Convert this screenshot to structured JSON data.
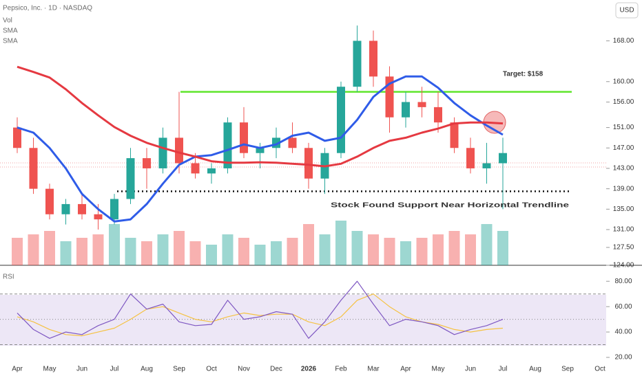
{
  "chart_data": {
    "type": "candlestick",
    "title": "Pepsico, Inc. · 1D · NASDAQ",
    "currency": "USD",
    "categories": [
      "Apr",
      null,
      "May",
      null,
      "Jun",
      null,
      "Jul",
      null,
      "Aug",
      null,
      "Sep",
      null,
      "Oct",
      null,
      "Nov",
      null,
      "Dec",
      null,
      "2026",
      null,
      "Feb",
      null,
      "Mar",
      null,
      "Apr",
      null,
      "May",
      null,
      "Jun",
      null,
      "Jul",
      null,
      "Aug",
      null,
      "Sep",
      null,
      "Oct"
    ],
    "open": [
      151,
      147,
      139,
      134,
      136,
      134,
      133,
      137,
      145,
      143,
      149,
      144,
      142,
      143,
      152,
      146,
      147,
      149,
      147,
      141,
      146,
      159,
      168,
      161,
      153,
      156,
      155,
      152,
      147,
      143,
      144,
      null,
      null,
      null,
      null,
      null,
      null
    ],
    "high": [
      153,
      149,
      140,
      137,
      138,
      136,
      138,
      147,
      147,
      151,
      158,
      146,
      144,
      153,
      155,
      148,
      151,
      152,
      148,
      147,
      160,
      171,
      170,
      163,
      158,
      159,
      158,
      153,
      149,
      148,
      149,
      null,
      null,
      null,
      null,
      null,
      null
    ],
    "low": [
      146,
      138,
      133,
      132,
      133,
      131,
      132,
      136,
      139,
      142,
      142,
      141,
      140,
      142,
      145,
      143,
      145,
      146,
      139,
      138,
      145,
      158,
      159,
      150,
      151,
      153,
      150,
      146,
      142,
      140,
      135,
      null,
      null,
      null,
      null,
      null,
      null
    ],
    "close": [
      147,
      139,
      134,
      136,
      134,
      133,
      137,
      145,
      143,
      149,
      144,
      142,
      143,
      152,
      146,
      147,
      149,
      147,
      141,
      146,
      159,
      168,
      161,
      153,
      156,
      155,
      152,
      147,
      143,
      144,
      146,
      null,
      null,
      null,
      null,
      null,
      null
    ],
    "up_color": "#26a69a",
    "down_color": "#ef5350",
    "ylim": [
      124,
      176
    ],
    "yticks": [
      {
        "value": 124,
        "label": "124.00"
      },
      {
        "value": 127.5,
        "label": "127.50"
      },
      {
        "value": 131,
        "label": "131.00"
      },
      {
        "value": 135,
        "label": "135.00"
      },
      {
        "value": 139,
        "label": "139.00"
      },
      {
        "value": 143,
        "label": "143.00"
      },
      {
        "value": 147,
        "label": "147.00"
      },
      {
        "value": 151,
        "label": "151.00"
      },
      {
        "value": 156,
        "label": "156.00"
      },
      {
        "value": 160,
        "label": "160.00"
      },
      {
        "value": 168,
        "label": "168.00"
      }
    ],
    "volume": {
      "name": "Vol",
      "ylim": [
        0,
        16
      ],
      "values": [
        8,
        9,
        10,
        7,
        8,
        9,
        12,
        8,
        7,
        9,
        10,
        7,
        6,
        9,
        8,
        6,
        7,
        8,
        12,
        9,
        13,
        10,
        9,
        8,
        7,
        8,
        9,
        10,
        9,
        12,
        10,
        null,
        null,
        null,
        null,
        null,
        null
      ]
    },
    "series": [
      {
        "name": "SMA",
        "color": "#2f5ce8",
        "values": [
          151,
          150,
          147,
          143,
          138,
          135,
          132.6,
          133,
          136,
          140,
          143.7,
          145.3,
          145.6,
          146.6,
          147.7,
          147,
          147.7,
          149.4,
          150,
          148.4,
          149,
          152.5,
          157,
          159.6,
          161,
          161,
          158.8,
          155.8,
          153.4,
          151.4,
          149.6,
          null,
          null,
          null,
          null,
          null,
          null
        ]
      },
      {
        "name": "SMA",
        "color": "#e53941",
        "values": [
          162.9,
          161.9,
          160.8,
          158.5,
          155.8,
          153.4,
          151.1,
          149.4,
          148,
          147,
          146.1,
          145.3,
          144.4,
          144.1,
          144.1,
          144.2,
          144.1,
          143.9,
          143.7,
          143.4,
          143.9,
          145.3,
          147,
          148.4,
          149,
          150,
          150.8,
          151.8,
          152,
          152,
          151.8,
          null,
          null,
          null,
          null,
          null,
          null
        ]
      }
    ],
    "annotations": [
      {
        "text": "Target: $158",
        "value": 158,
        "color": "#5ee52a"
      },
      {
        "text": "Stock Found Support Near Horizontal Trendline",
        "value": 138.5,
        "color": "#111111"
      }
    ],
    "rsi": {
      "name": "RSI",
      "ylim": [
        20,
        85
      ],
      "yticks": [
        {
          "value": 20,
          "label": "20.00"
        },
        {
          "value": 40,
          "label": "40.00"
        },
        {
          "value": 60,
          "label": "60.00"
        },
        {
          "value": 80,
          "label": "80.00"
        }
      ],
      "bands": [
        30,
        50,
        70
      ],
      "values": [
        55,
        42,
        35,
        40,
        38,
        45,
        50,
        70,
        58,
        62,
        48,
        45,
        46,
        65,
        50,
        52,
        56,
        54,
        35,
        48,
        65,
        80,
        62,
        45,
        50,
        48,
        45,
        38,
        42,
        45,
        50,
        null,
        null,
        null,
        null,
        null,
        null
      ],
      "ma_values": [
        52,
        48,
        42,
        38,
        37,
        40,
        43,
        50,
        58,
        60,
        55,
        50,
        48,
        52,
        55,
        53,
        54,
        54,
        48,
        45,
        52,
        65,
        70,
        60,
        52,
        48,
        46,
        42,
        40,
        42,
        43,
        null,
        null,
        null,
        null,
        null,
        null
      ],
      "color": "#7e57c2",
      "ma_color": "#f5c242"
    }
  }
}
